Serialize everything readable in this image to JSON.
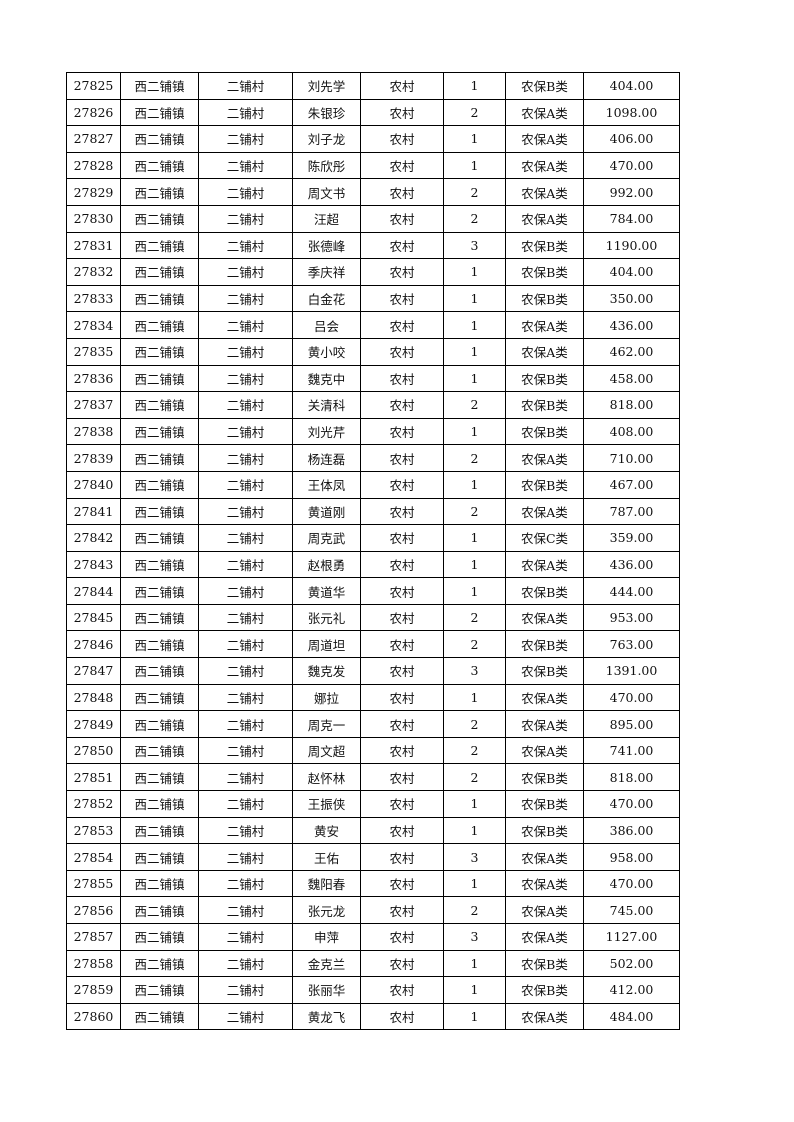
{
  "rows": [
    [
      "27825",
      "西二铺镇",
      "二铺村",
      "刘先学",
      "农村",
      "1",
      "农保B类",
      "404.00"
    ],
    [
      "27826",
      "西二铺镇",
      "二铺村",
      "朱银珍",
      "农村",
      "2",
      "农保A类",
      "1098.00"
    ],
    [
      "27827",
      "西二铺镇",
      "二铺村",
      "刘子龙",
      "农村",
      "1",
      "农保A类",
      "406.00"
    ],
    [
      "27828",
      "西二铺镇",
      "二铺村",
      "陈欣彤",
      "农村",
      "1",
      "农保A类",
      "470.00"
    ],
    [
      "27829",
      "西二铺镇",
      "二铺村",
      "周文书",
      "农村",
      "2",
      "农保A类",
      "992.00"
    ],
    [
      "27830",
      "西二铺镇",
      "二铺村",
      "汪超",
      "农村",
      "2",
      "农保A类",
      "784.00"
    ],
    [
      "27831",
      "西二铺镇",
      "二铺村",
      "张德峰",
      "农村",
      "3",
      "农保B类",
      "1190.00"
    ],
    [
      "27832",
      "西二铺镇",
      "二铺村",
      "季庆祥",
      "农村",
      "1",
      "农保B类",
      "404.00"
    ],
    [
      "27833",
      "西二铺镇",
      "二铺村",
      "白金花",
      "农村",
      "1",
      "农保B类",
      "350.00"
    ],
    [
      "27834",
      "西二铺镇",
      "二铺村",
      "吕会",
      "农村",
      "1",
      "农保A类",
      "436.00"
    ],
    [
      "27835",
      "西二铺镇",
      "二铺村",
      "黄小咬",
      "农村",
      "1",
      "农保A类",
      "462.00"
    ],
    [
      "27836",
      "西二铺镇",
      "二铺村",
      "魏克中",
      "农村",
      "1",
      "农保B类",
      "458.00"
    ],
    [
      "27837",
      "西二铺镇",
      "二铺村",
      "关清科",
      "农村",
      "2",
      "农保B类",
      "818.00"
    ],
    [
      "27838",
      "西二铺镇",
      "二铺村",
      "刘光芹",
      "农村",
      "1",
      "农保B类",
      "408.00"
    ],
    [
      "27839",
      "西二铺镇",
      "二铺村",
      "杨连磊",
      "农村",
      "2",
      "农保A类",
      "710.00"
    ],
    [
      "27840",
      "西二铺镇",
      "二铺村",
      "王体凤",
      "农村",
      "1",
      "农保B类",
      "467.00"
    ],
    [
      "27841",
      "西二铺镇",
      "二铺村",
      "黄道刚",
      "农村",
      "2",
      "农保A类",
      "787.00"
    ],
    [
      "27842",
      "西二铺镇",
      "二铺村",
      "周克武",
      "农村",
      "1",
      "农保C类",
      "359.00"
    ],
    [
      "27843",
      "西二铺镇",
      "二铺村",
      "赵根勇",
      "农村",
      "1",
      "农保A类",
      "436.00"
    ],
    [
      "27844",
      "西二铺镇",
      "二铺村",
      "黄道华",
      "农村",
      "1",
      "农保B类",
      "444.00"
    ],
    [
      "27845",
      "西二铺镇",
      "二铺村",
      "张元礼",
      "农村",
      "2",
      "农保A类",
      "953.00"
    ],
    [
      "27846",
      "西二铺镇",
      "二铺村",
      "周道坦",
      "农村",
      "2",
      "农保B类",
      "763.00"
    ],
    [
      "27847",
      "西二铺镇",
      "二铺村",
      "魏克发",
      "农村",
      "3",
      "农保B类",
      "1391.00"
    ],
    [
      "27848",
      "西二铺镇",
      "二铺村",
      "娜拉",
      "农村",
      "1",
      "农保A类",
      "470.00"
    ],
    [
      "27849",
      "西二铺镇",
      "二铺村",
      "周克一",
      "农村",
      "2",
      "农保A类",
      "895.00"
    ],
    [
      "27850",
      "西二铺镇",
      "二铺村",
      "周文超",
      "农村",
      "2",
      "农保A类",
      "741.00"
    ],
    [
      "27851",
      "西二铺镇",
      "二铺村",
      "赵怀林",
      "农村",
      "2",
      "农保B类",
      "818.00"
    ],
    [
      "27852",
      "西二铺镇",
      "二铺村",
      "王振侠",
      "农村",
      "1",
      "农保B类",
      "470.00"
    ],
    [
      "27853",
      "西二铺镇",
      "二铺村",
      "黄安",
      "农村",
      "1",
      "农保B类",
      "386.00"
    ],
    [
      "27854",
      "西二铺镇",
      "二铺村",
      "王佑",
      "农村",
      "3",
      "农保A类",
      "958.00"
    ],
    [
      "27855",
      "西二铺镇",
      "二铺村",
      "魏阳春",
      "农村",
      "1",
      "农保A类",
      "470.00"
    ],
    [
      "27856",
      "西二铺镇",
      "二铺村",
      "张元龙",
      "农村",
      "2",
      "农保A类",
      "745.00"
    ],
    [
      "27857",
      "西二铺镇",
      "二铺村",
      "申萍",
      "农村",
      "3",
      "农保A类",
      "1127.00"
    ],
    [
      "27858",
      "西二铺镇",
      "二铺村",
      "金克兰",
      "农村",
      "1",
      "农保B类",
      "502.00"
    ],
    [
      "27859",
      "西二铺镇",
      "二铺村",
      "张丽华",
      "农村",
      "1",
      "农保B类",
      "412.00"
    ],
    [
      "27860",
      "西二铺镇",
      "二铺村",
      "黄龙飞",
      "农村",
      "1",
      "农保A类",
      "484.00"
    ]
  ]
}
